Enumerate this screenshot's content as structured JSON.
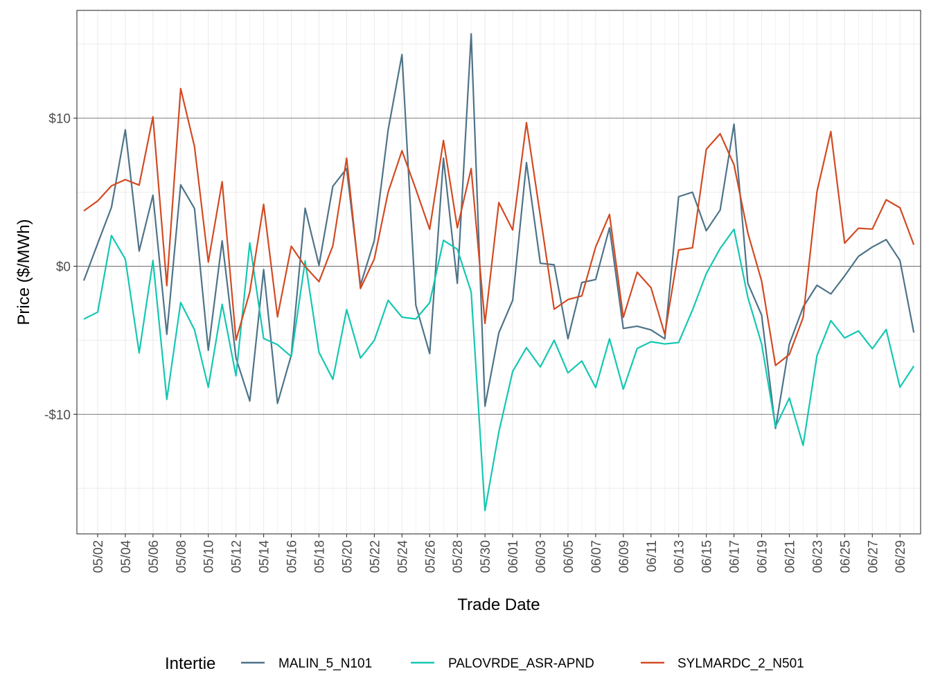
{
  "chart_data": {
    "type": "line",
    "title": "",
    "xlabel": "Trade Date",
    "ylabel": "Price ($/MWh)",
    "ylim": [
      -17.5,
      17.3
    ],
    "y_ticks": [
      {
        "value": -10,
        "label": "-$10"
      },
      {
        "value": 0,
        "label": "$0"
      },
      {
        "value": 10,
        "label": "$10"
      }
    ],
    "y_minor_gridlines": [
      -15,
      -5,
      5,
      15
    ],
    "grid": true,
    "x": [
      "05/01",
      "05/02",
      "05/03",
      "05/04",
      "05/05",
      "05/06",
      "05/07",
      "05/08",
      "05/09",
      "05/10",
      "05/11",
      "05/12",
      "05/13",
      "05/14",
      "05/15",
      "05/16",
      "05/17",
      "05/18",
      "05/19",
      "05/20",
      "05/21",
      "05/22",
      "05/23",
      "05/24",
      "05/25",
      "05/26",
      "05/27",
      "05/28",
      "05/29",
      "05/30",
      "05/31",
      "06/01",
      "06/02",
      "06/03",
      "06/04",
      "06/05",
      "06/06",
      "06/07",
      "06/08",
      "06/09",
      "06/10",
      "06/11",
      "06/12",
      "06/13",
      "06/14",
      "06/15",
      "06/16",
      "06/17",
      "06/18",
      "06/19",
      "06/20",
      "06/21",
      "06/22",
      "06/23",
      "06/24",
      "06/25",
      "06/26",
      "06/27",
      "06/28",
      "06/29",
      "06/30"
    ],
    "x_tick_labels": [
      "05/02",
      "05/04",
      "05/06",
      "05/08",
      "05/10",
      "05/12",
      "05/14",
      "05/16",
      "05/18",
      "05/20",
      "05/22",
      "05/24",
      "05/26",
      "05/28",
      "05/30",
      "06/01",
      "06/03",
      "06/05",
      "06/07",
      "06/09",
      "06/11",
      "06/13",
      "06/15",
      "06/17",
      "06/19",
      "06/21",
      "06/23",
      "06/25",
      "06/27",
      "06/29"
    ],
    "legend": {
      "title": "Intertie",
      "position": "bottom"
    },
    "series": [
      {
        "name": "MALIN_5_N101",
        "color": "#4e7388",
        "values": [
          -0.97,
          1.53,
          3.98,
          9.22,
          1.03,
          4.8,
          -4.6,
          5.5,
          3.9,
          -5.68,
          1.72,
          -6.2,
          -9.1,
          -0.22,
          -9.26,
          -6.0,
          3.92,
          0.07,
          5.4,
          6.6,
          -1.27,
          1.75,
          9.2,
          14.3,
          -2.63,
          -5.9,
          7.3,
          -1.15,
          15.7,
          -9.45,
          -4.5,
          -2.3,
          7.0,
          0.2,
          0.1,
          -4.9,
          -1.1,
          -0.9,
          2.6,
          -4.2,
          -4.05,
          -4.3,
          -4.9,
          4.7,
          5.0,
          2.4,
          3.8,
          9.6,
          -1.15,
          -3.3,
          -10.96,
          -5.26,
          -2.76,
          -1.28,
          -1.87,
          -0.65,
          0.67,
          1.3,
          1.8,
          0.39,
          -4.48
        ]
      },
      {
        "name": "PALOVRDE_ASR-APND",
        "color": "#14c7b2",
        "values": [
          -3.57,
          -3.1,
          2.07,
          0.48,
          -5.85,
          0.39,
          -9.0,
          -2.45,
          -4.29,
          -8.17,
          -2.57,
          -7.4,
          1.58,
          -4.88,
          -5.3,
          -6.1,
          0.36,
          -5.82,
          -7.64,
          -2.93,
          -6.2,
          -5.0,
          -2.3,
          -3.44,
          -3.56,
          -2.46,
          1.75,
          1.15,
          -1.74,
          -16.5,
          -11.2,
          -7.1,
          -5.5,
          -6.8,
          -5.0,
          -7.2,
          -6.4,
          -8.2,
          -4.9,
          -8.3,
          -5.55,
          -5.1,
          -5.25,
          -5.15,
          -2.95,
          -0.5,
          1.2,
          2.5,
          -2.1,
          -5.25,
          -10.85,
          -8.9,
          -12.1,
          -6.04,
          -3.67,
          -4.84,
          -4.37,
          -5.57,
          -4.27,
          -8.17,
          -6.74
        ]
      },
      {
        "name": "SYLMARDC_2_N501",
        "color": "#d24a22",
        "values": [
          3.74,
          4.41,
          5.43,
          5.85,
          5.48,
          10.1,
          -1.31,
          12.0,
          8.08,
          0.28,
          5.71,
          -4.99,
          -1.74,
          4.18,
          -3.42,
          1.35,
          -0.02,
          -1.04,
          1.38,
          7.3,
          -1.5,
          0.5,
          5.0,
          7.8,
          5.2,
          2.5,
          8.5,
          2.6,
          6.6,
          -3.86,
          4.3,
          2.45,
          9.7,
          3.4,
          -2.9,
          -2.25,
          -2.0,
          1.3,
          3.5,
          -3.45,
          -0.4,
          -1.45,
          -4.6,
          1.1,
          1.25,
          7.9,
          8.95,
          6.85,
          2.25,
          -1.0,
          -6.7,
          -5.96,
          -3.46,
          5.04,
          9.1,
          1.56,
          2.57,
          2.51,
          4.49,
          3.95,
          1.45
        ]
      }
    ]
  }
}
